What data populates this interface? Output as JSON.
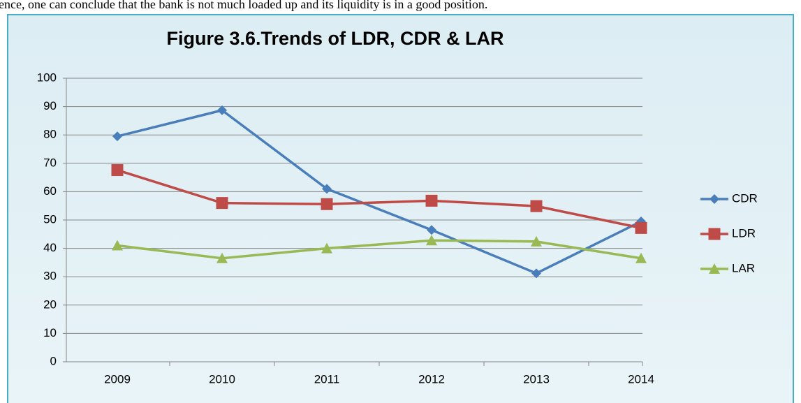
{
  "document_text": "ence, one can conclude that the bank is not much loaded up and its liquidity is in a good position.",
  "chart_data": {
    "type": "line",
    "title": "Figure 3.6.Trends of LDR, CDR & LAR",
    "categories": [
      "2009",
      "2010",
      "2011",
      "2012",
      "2013",
      "2014"
    ],
    "series": [
      {
        "name": "CDR",
        "color": "#4a7ebb",
        "marker": "diamond",
        "values": [
          79.5,
          88.7,
          61,
          46.5,
          31.2,
          49.5
        ]
      },
      {
        "name": "LDR",
        "color": "#be4b48",
        "marker": "square",
        "values": [
          67.6,
          56,
          55.6,
          56.8,
          54.9,
          47.2
        ]
      },
      {
        "name": "LAR",
        "color": "#98b954",
        "marker": "triangle",
        "values": [
          41,
          36.5,
          40,
          42.8,
          42.4,
          36.5
        ]
      }
    ],
    "ylim": [
      0,
      100
    ],
    "yticks": [
      0,
      10,
      20,
      30,
      40,
      50,
      60,
      70,
      80,
      90,
      100
    ],
    "grid": true,
    "legend": "right"
  }
}
